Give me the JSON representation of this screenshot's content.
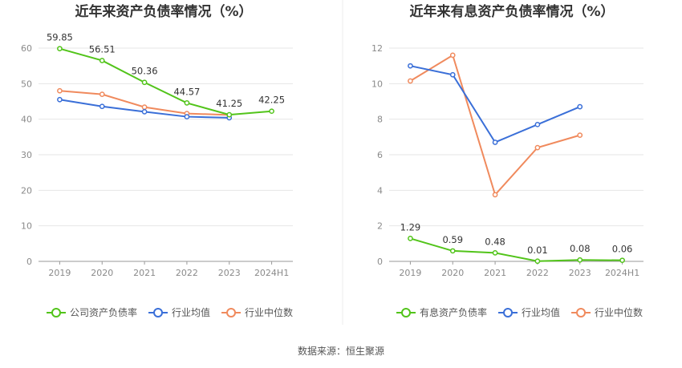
{
  "source": "数据来源：恒生聚源",
  "colors": {
    "company": "#52c41a",
    "avg": "#3a6fd8",
    "median": "#f08a5d",
    "grid": "#e6e6e6",
    "axis": "#9a9a9a"
  },
  "chart_data": [
    {
      "type": "line",
      "title": "近年来资产负债率情况（%）",
      "categories": [
        "2019",
        "2020",
        "2021",
        "2022",
        "2023",
        "2024H1"
      ],
      "ylim": [
        0,
        60
      ],
      "yticks": [
        "0",
        "10",
        "20",
        "30",
        "40",
        "50",
        "60"
      ],
      "grid": true,
      "legend": "bottom",
      "series": [
        {
          "name": "公司资产负债率",
          "key": "company",
          "values": [
            59.85,
            56.51,
            50.36,
            44.57,
            41.25,
            42.25
          ],
          "labels": [
            "59.85",
            "56.51",
            "50.36",
            "44.57",
            "41.25",
            "42.25"
          ]
        },
        {
          "name": "行业均值",
          "key": "avg",
          "values": [
            45.5,
            43.6,
            42.1,
            40.7,
            40.4,
            null
          ]
        },
        {
          "name": "行业中位数",
          "key": "median",
          "values": [
            48.0,
            47.0,
            43.4,
            41.6,
            41.2,
            null
          ]
        }
      ]
    },
    {
      "type": "line",
      "title": "近年来有息资产负债率情况（%）",
      "categories": [
        "2019",
        "2020",
        "2021",
        "2022",
        "2023",
        "2024H1"
      ],
      "ylim": [
        0,
        12
      ],
      "yticks": [
        "0",
        "2",
        "4",
        "6",
        "8",
        "10",
        "12"
      ],
      "grid": true,
      "legend": "bottom",
      "series": [
        {
          "name": "有息资产负债率",
          "key": "company",
          "values": [
            1.29,
            0.59,
            0.48,
            0.01,
            0.08,
            0.06
          ],
          "labels": [
            "1.29",
            "0.59",
            "0.48",
            "0.01",
            "0.08",
            "0.06"
          ]
        },
        {
          "name": "行业均值",
          "key": "avg",
          "values": [
            11.0,
            10.5,
            6.7,
            7.7,
            8.7,
            null
          ]
        },
        {
          "name": "行业中位数",
          "key": "median",
          "values": [
            10.15,
            11.6,
            3.75,
            6.4,
            7.1,
            null
          ]
        }
      ]
    }
  ]
}
